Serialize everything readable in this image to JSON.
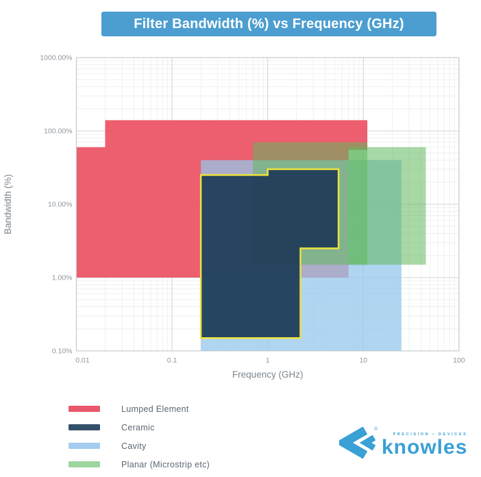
{
  "page": {
    "background": "#ffffff"
  },
  "title": {
    "text": "Filter Bandwidth (%) vs Frequency (GHz)",
    "background": "#4c9ed0",
    "text_color": "#ffffff"
  },
  "chart_data": {
    "type": "area",
    "title": "Filter Bandwidth (%) vs Frequency (GHz)",
    "x_axis": {
      "label": "Frequency (GHz)",
      "scale": "log",
      "min": 0.01,
      "max": 100,
      "tick_values": [
        0.01,
        0.1,
        1,
        10,
        100
      ],
      "tick_labels": [
        "0.01",
        "0.1",
        "1",
        "10",
        "100"
      ]
    },
    "y_axis": {
      "label": "Bandwidth (%)",
      "scale": "log",
      "min": 0.1,
      "max": 1000,
      "tick_values": [
        0.1,
        1,
        10,
        100,
        1000
      ],
      "tick_labels": [
        "0.10%",
        "1.00%",
        "10.00%",
        "100.00%",
        "1000.00%"
      ]
    },
    "grid": {
      "major_color": "#d3d6d9",
      "minor_color": "#ebedef",
      "border_color": "#c6cbd0",
      "tick_color": "#8f969d",
      "axis_title_color": "#7d868e"
    },
    "regions": [
      {
        "id": "lumped-element",
        "series": "Lumped Element",
        "fill": "rgba(236,89,105,0.97)",
        "points_freq_ghz_bandwidth_pct": [
          [
            0.01,
            1
          ],
          [
            0.01,
            60
          ],
          [
            0.02,
            60
          ],
          [
            0.02,
            140
          ],
          [
            11,
            140
          ],
          [
            11,
            55
          ],
          [
            7,
            55
          ],
          [
            7,
            1
          ]
        ]
      },
      {
        "id": "cavity",
        "series": "Cavity",
        "fill": "rgba(149,199,235,0.75)",
        "points_freq_ghz_bandwidth_pct": [
          [
            0.2,
            0.1
          ],
          [
            0.2,
            40
          ],
          [
            25,
            40
          ],
          [
            25,
            0.1
          ]
        ]
      },
      {
        "id": "planar-low",
        "series": "Planar (Microstrip etc)",
        "fill": "rgba(96,184,92,0.55)",
        "points_freq_ghz_bandwidth_pct": [
          [
            0.7,
            1.5
          ],
          [
            0.7,
            70
          ],
          [
            11,
            70
          ],
          [
            11,
            1.5
          ]
        ]
      },
      {
        "id": "planar-high",
        "series": "Planar (Microstrip etc)",
        "fill": "rgba(96,184,92,0.55)",
        "points_freq_ghz_bandwidth_pct": [
          [
            7,
            1.5
          ],
          [
            7,
            60
          ],
          [
            45,
            60
          ],
          [
            45,
            1.5
          ]
        ]
      },
      {
        "id": "ceramic",
        "series": "Ceramic",
        "fill": "rgba(32,62,90,0.95)",
        "stroke": "#eee23c",
        "stroke_width": 2.5,
        "points_freq_ghz_bandwidth_pct": [
          [
            0.2,
            0.15
          ],
          [
            0.2,
            25
          ],
          [
            1,
            25
          ],
          [
            1,
            30
          ],
          [
            5.5,
            30
          ],
          [
            5.5,
            2.5
          ],
          [
            2.2,
            2.5
          ],
          [
            2.2,
            0.15
          ]
        ]
      }
    ]
  },
  "legend": {
    "items": [
      {
        "label": "Lumped Element",
        "color": "#e9586b"
      },
      {
        "label": "Ceramic",
        "color": "#33506b"
      },
      {
        "label": "Cavity",
        "color": "#a5cbee"
      },
      {
        "label": "Planar (Microstrip etc)",
        "color": "#9dd59f"
      }
    ]
  },
  "logo": {
    "brand": "knowles",
    "tagline": "PRECISION ▪ DEVICES",
    "registered": "®",
    "color": "#3aa0d5"
  }
}
